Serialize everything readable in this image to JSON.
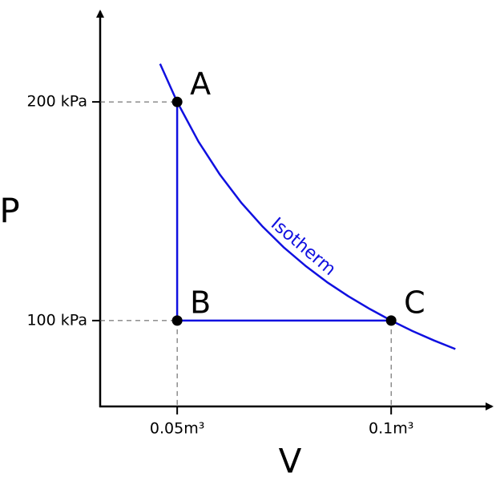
{
  "chart_data": {
    "type": "line",
    "xlabel": "V",
    "ylabel": "P",
    "xlim": [
      0.032,
      0.12
    ],
    "ylim": [
      60,
      240
    ],
    "xticks": [
      {
        "value": 0.05,
        "label": "0.05m³"
      },
      {
        "value": 0.1,
        "label": "0.1m³"
      }
    ],
    "yticks": [
      {
        "value": 100,
        "label": "100 kPa"
      },
      {
        "value": 200,
        "label": "200 kPa"
      }
    ],
    "series": [
      {
        "name": "Isotherm",
        "color": "#1010e0",
        "x": [
          0.046,
          0.05,
          0.055,
          0.06,
          0.065,
          0.07,
          0.075,
          0.08,
          0.085,
          0.09,
          0.095,
          0.1,
          0.105,
          0.11,
          0.115
        ],
        "values": [
          217.4,
          200,
          181.8,
          166.7,
          153.8,
          142.9,
          133.3,
          125,
          117.6,
          111.1,
          105.3,
          100,
          95.2,
          90.9,
          87
        ]
      },
      {
        "color": "#1010e0",
        "x": [
          0.05,
          0.05,
          0.1
        ],
        "values": [
          200,
          100,
          100
        ]
      }
    ],
    "points": [
      {
        "label": "A",
        "x": 0.05,
        "y": 200
      },
      {
        "label": "B",
        "x": 0.05,
        "y": 100
      },
      {
        "label": "C",
        "x": 0.1,
        "y": 100
      }
    ]
  }
}
